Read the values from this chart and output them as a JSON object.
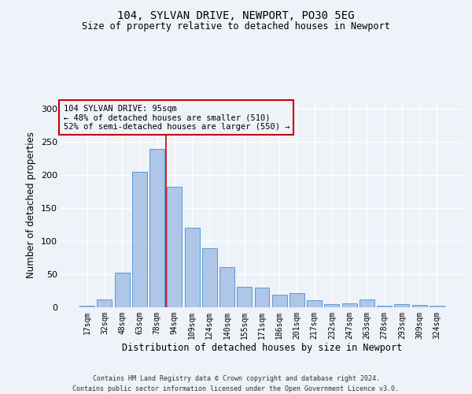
{
  "title1": "104, SYLVAN DRIVE, NEWPORT, PO30 5EG",
  "title2": "Size of property relative to detached houses in Newport",
  "xlabel": "Distribution of detached houses by size in Newport",
  "ylabel": "Number of detached properties",
  "categories": [
    "17sqm",
    "32sqm",
    "48sqm",
    "63sqm",
    "78sqm",
    "94sqm",
    "109sqm",
    "124sqm",
    "140sqm",
    "155sqm",
    "171sqm",
    "186sqm",
    "201sqm",
    "217sqm",
    "232sqm",
    "247sqm",
    "263sqm",
    "278sqm",
    "293sqm",
    "309sqm",
    "324sqm"
  ],
  "values": [
    2,
    12,
    52,
    205,
    240,
    182,
    121,
    90,
    61,
    31,
    30,
    19,
    21,
    11,
    5,
    6,
    12,
    2,
    5,
    3,
    2
  ],
  "bar_color": "#aec6e8",
  "bar_edge_color": "#5b9bd5",
  "marker_color": "#cc0000",
  "annotation_line1": "104 SYLVAN DRIVE: 95sqm",
  "annotation_line2": "← 48% of detached houses are smaller (510)",
  "annotation_line3": "52% of semi-detached houses are larger (550) →",
  "annotation_box_color": "#cc0000",
  "ylim": [
    0,
    310
  ],
  "yticks": [
    0,
    50,
    100,
    150,
    200,
    250,
    300
  ],
  "footer1": "Contains HM Land Registry data © Crown copyright and database right 2024.",
  "footer2": "Contains public sector information licensed under the Open Government Licence v3.0.",
  "bg_color": "#eef2f9",
  "grid_color": "#ffffff"
}
